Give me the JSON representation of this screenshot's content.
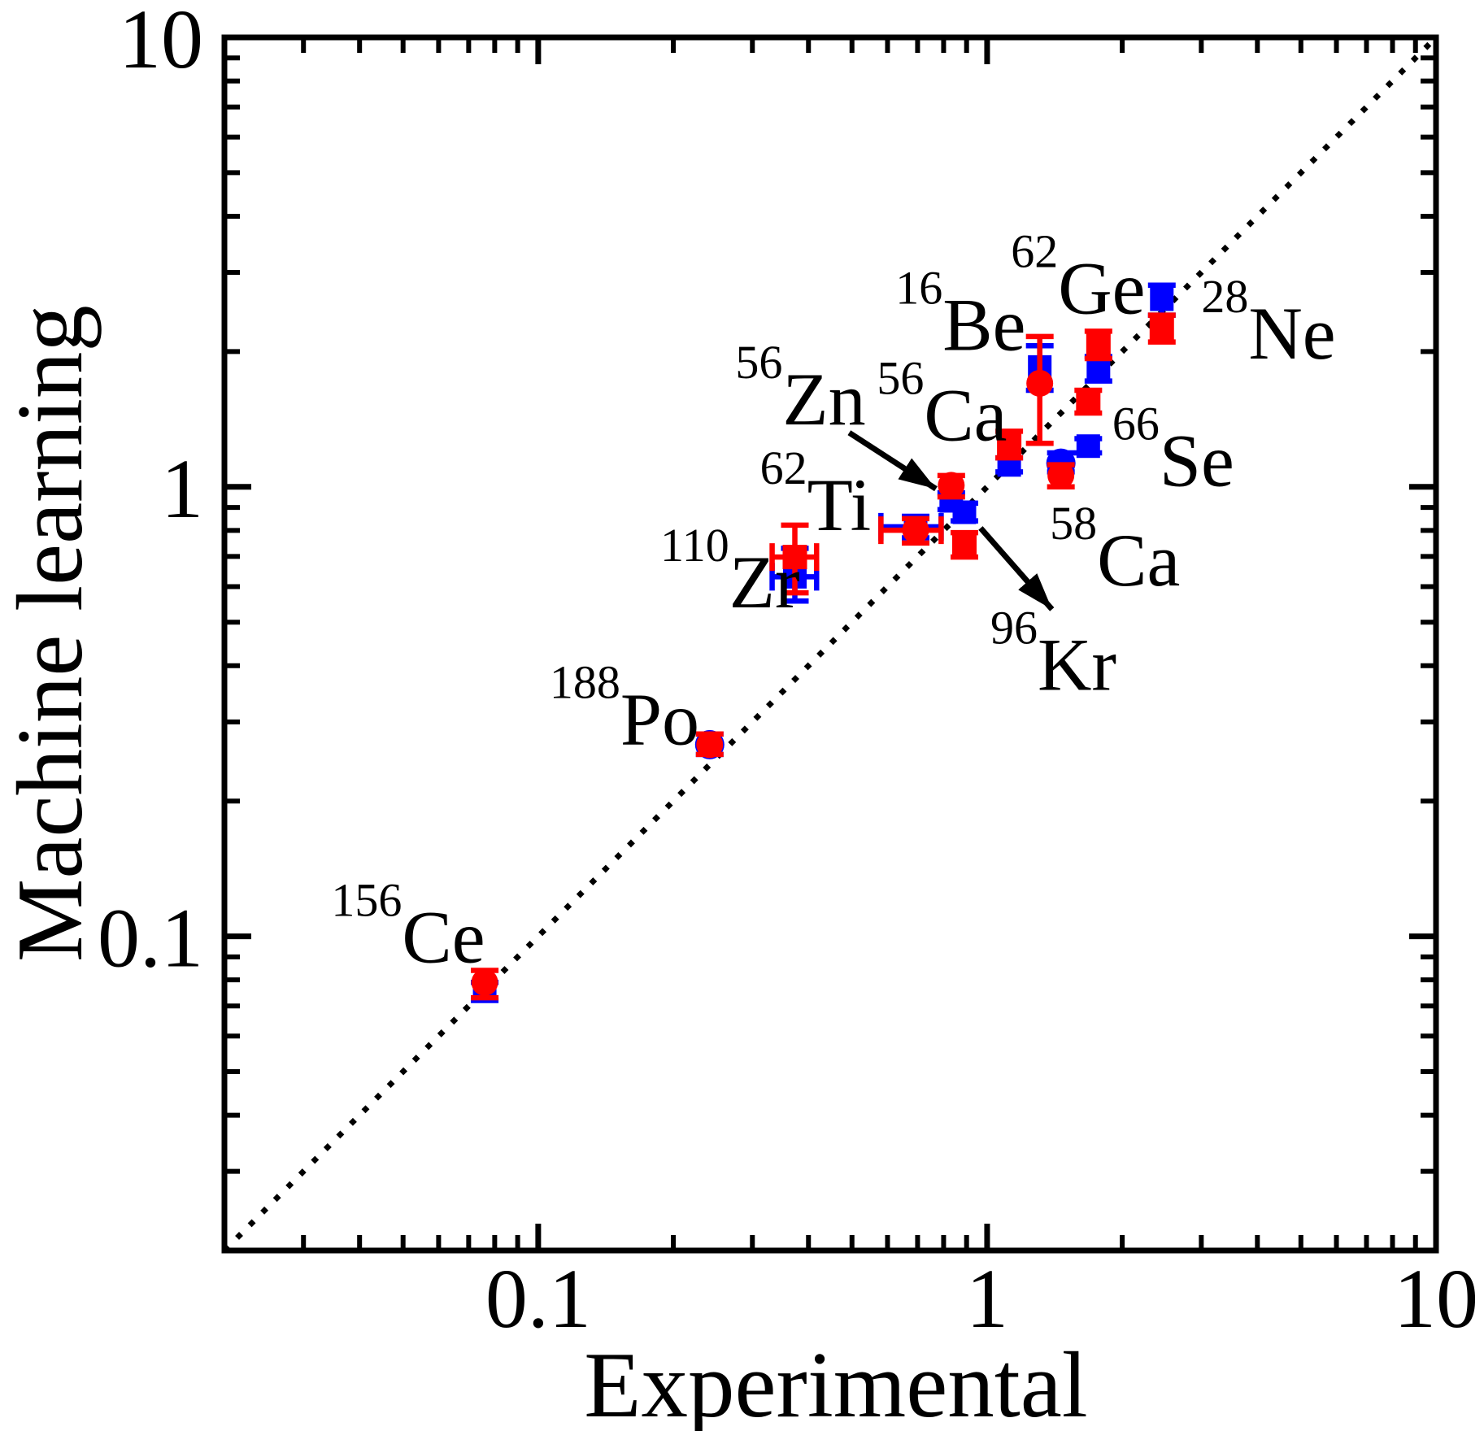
{
  "figure": {
    "background": "#ffffff",
    "text_color": "#000000",
    "red": "#ff0000",
    "blue": "#0000ff"
  },
  "chart_data": {
    "type": "scatter",
    "title": "",
    "xlabel": "Experimental",
    "ylabel": "Machine learning",
    "xscale": "log",
    "yscale": "log",
    "xlim": [
      0.02,
      10
    ],
    "ylim": [
      0.02,
      10
    ],
    "grid": false,
    "legend": "none",
    "identity_line": true,
    "major_ticks": [
      0.1,
      1,
      10
    ],
    "major_tick_labels": [
      "0.1",
      "1",
      "10"
    ],
    "minor_ticks": [
      0.03,
      0.04,
      0.05,
      0.06,
      0.07,
      0.08,
      0.09,
      0.2,
      0.3,
      0.4,
      0.5,
      0.6,
      0.7,
      0.8,
      0.9,
      2,
      3,
      4,
      5,
      6,
      7,
      8,
      9
    ],
    "series": [
      {
        "name": "red",
        "color": "#ff0000"
      },
      {
        "name": "blue",
        "color": "#0000ff"
      }
    ],
    "points": [
      {
        "isotope": "Ce",
        "mass": "156",
        "x": 0.076,
        "red": {
          "y": 0.079,
          "err": [
            0.073,
            0.084
          ],
          "marker": "circle"
        },
        "blue": {
          "y": 0.076,
          "err": [
            0.072,
            0.079
          ],
          "marker": "square"
        },
        "label": {
          "x": 0.0346,
          "y": 0.129
        }
      },
      {
        "isotope": "Po",
        "mass": "188",
        "x": 0.241,
        "red": {
          "y": 0.267,
          "err": [
            0.254,
            0.282
          ],
          "marker": "circle"
        },
        "blue": {
          "y": 0.267,
          "err": [
            0.254,
            0.282
          ],
          "marker": "circle"
        },
        "label": {
          "x": 0.106,
          "y": 0.394
        }
      },
      {
        "isotope": "Zr",
        "mass": "110",
        "x": 0.373,
        "xerr": [
          0.332,
          0.417
        ],
        "red": {
          "y": 0.698,
          "err": [
            0.581,
            0.822
          ],
          "marker": "square"
        },
        "blue": {
          "y": 0.631,
          "err": [
            0.557,
            0.73
          ],
          "marker": "square"
        },
        "label": {
          "x": 0.187,
          "y": 0.795
        }
      },
      {
        "isotope": "Ti",
        "mass": "62",
        "x": 0.693,
        "xerr": [
          0.58,
          0.79
        ],
        "red": {
          "y": 0.801,
          "err": [
            0.75,
            0.85
          ],
          "marker": "circle"
        },
        "blue": {
          "y": 0.815,
          "err": [
            0.77,
            0.86
          ],
          "marker": "square"
        },
        "label": {
          "x": 0.312,
          "y": 1.18
        }
      },
      {
        "isotope": "Zn",
        "mass": "56",
        "x": 0.832,
        "red": {
          "y": 1.008,
          "err": [
            0.95,
            1.06
          ],
          "marker": "circle"
        },
        "blue": {
          "y": 0.931,
          "err": [
            0.89,
            0.97
          ],
          "marker": "square"
        },
        "label": {
          "x": 0.275,
          "y": 2.03
        }
      },
      {
        "isotope": "Kr",
        "mass": "96",
        "x": 0.89,
        "red": {
          "y": 0.743,
          "err": [
            0.698,
            0.791
          ],
          "marker": "square"
        },
        "blue": {
          "y": 0.878,
          "err": [
            0.84,
            0.92
          ],
          "marker": "square"
        },
        "label": {
          "x": 1.017,
          "y": 0.521
        }
      },
      {
        "isotope": "Ca",
        "mass": "56",
        "x": 1.12,
        "red": {
          "y": 1.238,
          "err": [
            1.16,
            1.33
          ],
          "marker": "square"
        },
        "blue": {
          "y": 1.119,
          "err": [
            1.08,
            1.16
          ],
          "marker": "square"
        },
        "label": {
          "x": 0.568,
          "y": 1.87
        }
      },
      {
        "isotope": "Ca",
        "mass": "58",
        "x": 1.46,
        "red": {
          "y": 1.06,
          "err": [
            1.0,
            1.12
          ],
          "marker": "circle"
        },
        "blue": {
          "y": 1.129,
          "err": [
            1.08,
            1.19
          ],
          "marker": "circle"
        },
        "label": {
          "x": 1.38,
          "y": 0.89
        }
      },
      {
        "isotope": "Be",
        "mass": "16",
        "x": 1.31,
        "red": {
          "y": 1.7,
          "err": [
            1.25,
            2.16
          ],
          "marker": "circle"
        },
        "blue": {
          "y": 1.848,
          "err": [
            1.64,
            2.06
          ],
          "marker": "square"
        },
        "label": {
          "x": 0.625,
          "y": 2.97
        }
      },
      {
        "isotope": "Ge",
        "mass": "62",
        "x": 1.77,
        "red": {
          "y": 2.07,
          "err": [
            1.93,
            2.22
          ],
          "marker": "square"
        },
        "blue": {
          "y": 1.834,
          "err": [
            1.72,
            1.95
          ],
          "marker": "square"
        },
        "label": {
          "x": 1.13,
          "y": 3.58
        }
      },
      {
        "isotope": "Se",
        "mass": "66",
        "x": 1.68,
        "red": {
          "y": 1.545,
          "err": [
            1.46,
            1.64
          ],
          "marker": "square"
        },
        "blue": {
          "y": 1.232,
          "err": [
            1.19,
            1.28
          ],
          "marker": "square"
        },
        "label": {
          "x": 1.9,
          "y": 1.48
        }
      },
      {
        "isotope": "Ne",
        "mass": "28",
        "x": 2.45,
        "red": {
          "y": 2.25,
          "err": [
            2.1,
            2.41
          ],
          "marker": "square"
        },
        "blue": {
          "y": 2.615,
          "err": [
            2.41,
            2.81
          ],
          "marker": "square"
        },
        "label": {
          "x": 3.0,
          "y": 2.84
        }
      }
    ],
    "arrows": [
      {
        "isotope": "Zn",
        "from": [
          0.493,
          1.32
        ],
        "to": [
          0.769,
          0.99
        ]
      },
      {
        "isotope": "Kr",
        "from": [
          0.967,
          0.81
        ],
        "to": [
          1.395,
          0.534
        ]
      }
    ]
  }
}
